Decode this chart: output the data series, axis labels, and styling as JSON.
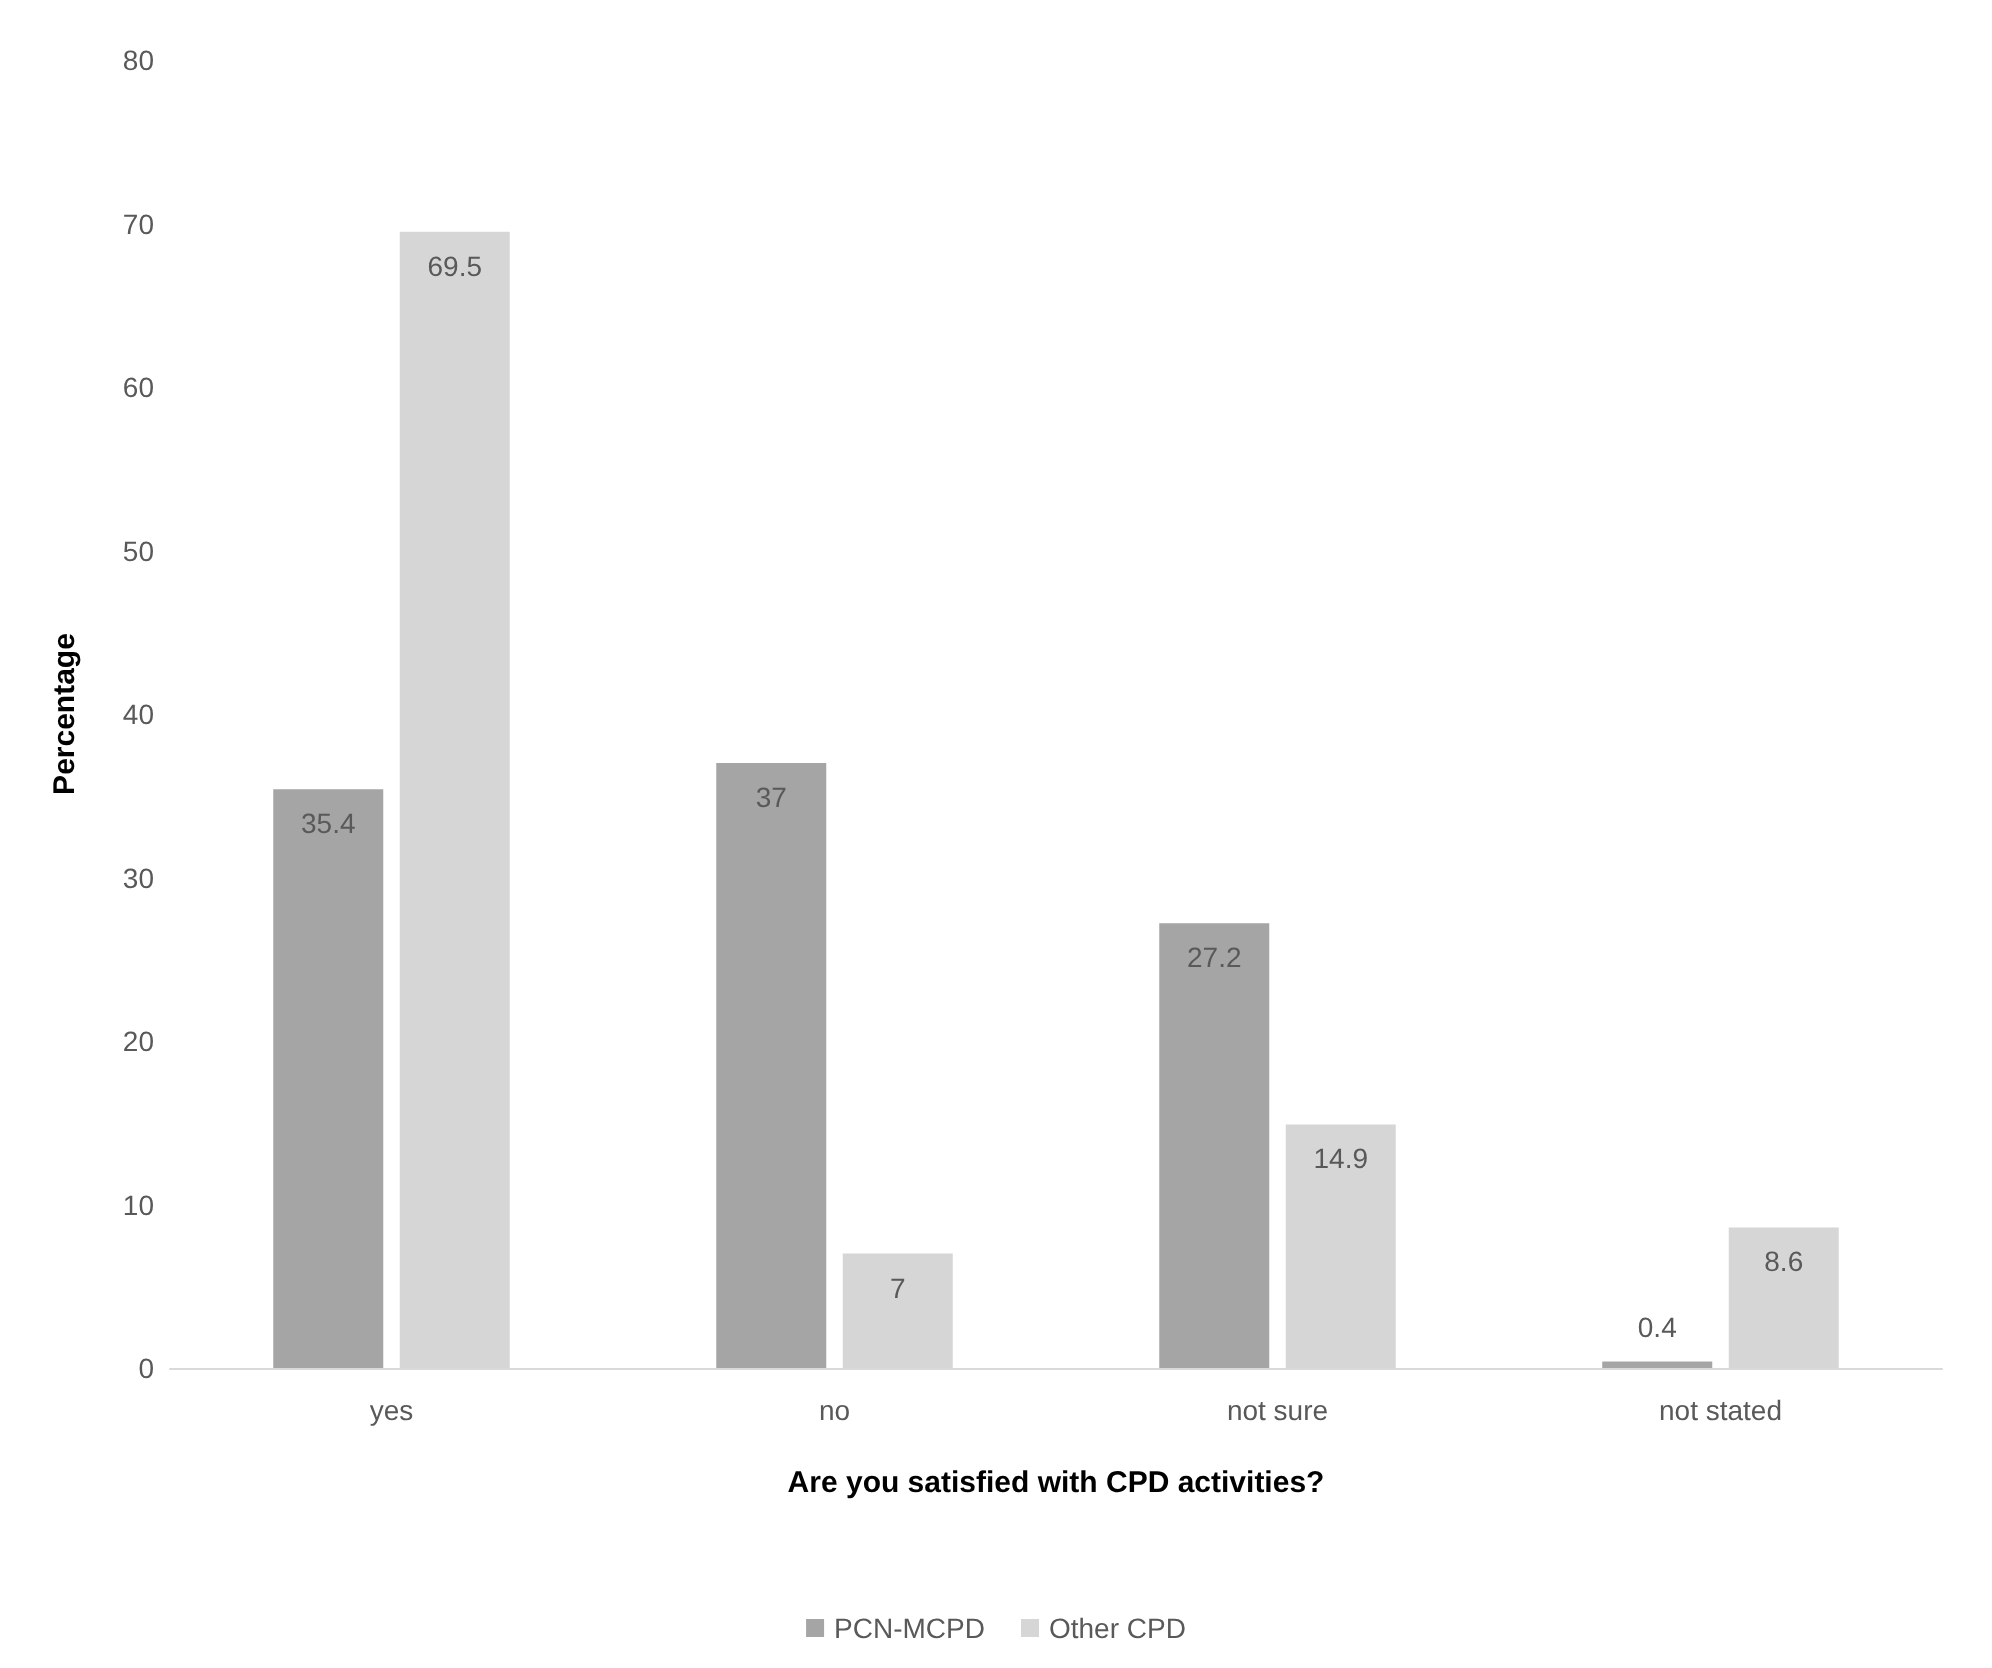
{
  "chart_data": {
    "type": "bar",
    "xlabel": "Are you satisfied with CPD activities?",
    "ylabel": "Percentage",
    "categories": [
      "yes",
      "no",
      "not sure",
      "not stated"
    ],
    "series": [
      {
        "name": "PCN-MCPD",
        "color": "#a5a5a5",
        "values": [
          35.4,
          37,
          27.2,
          0.4
        ]
      },
      {
        "name": "Other CPD",
        "color": "#d6d6d6",
        "values": [
          69.5,
          7,
          14.9,
          8.6
        ]
      }
    ],
    "ylim": [
      0,
      80
    ],
    "yticks": [
      0,
      10,
      20,
      30,
      40,
      50,
      60,
      70,
      80
    ],
    "grid": false,
    "legend": "bottom",
    "data_labels": true
  }
}
